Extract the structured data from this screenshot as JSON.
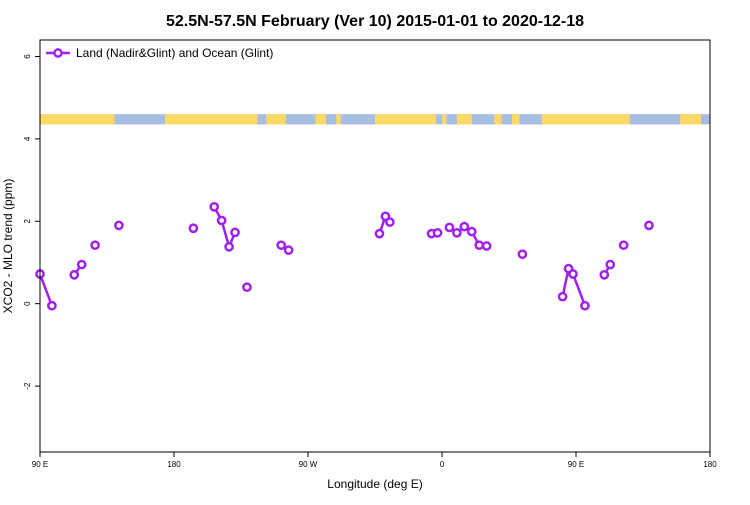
{
  "chart_data": {
    "type": "line",
    "title": "52.5N-57.5N February (Ver 10)   2015-01-01 to 2020-12-18",
    "xlabel": "Longitude (deg E)",
    "ylabel": "XCO2 - MLO trend (ppm)",
    "xlim": [
      90,
      540
    ],
    "ylim": [
      -3.6,
      6.4
    ],
    "x_tick_values": [
      90,
      180,
      270,
      360,
      450,
      540
    ],
    "x_tick_labels": [
      "90 E",
      "180",
      "90 W",
      "0",
      "90 E",
      "180"
    ],
    "y_tick_values": [
      -2,
      0,
      2,
      4,
      6
    ],
    "y_tick_labels": [
      "-2",
      "0",
      "2",
      "4",
      "6"
    ],
    "grid": false,
    "legend": {
      "position": "top-left",
      "entries": [
        "Land (Nadir&Glint) and Ocean (Glint)"
      ]
    },
    "series_color": "#a020f0",
    "land_color": "#ffd966",
    "ocean_color": "#a7bde2",
    "series": [
      {
        "name": "Land (Nadir&Glint) and Ocean (Glint)",
        "segments": [
          [
            [
              90,
              0.72
            ],
            [
              98,
              -0.05
            ]
          ],
          [
            [
              113,
              0.7
            ],
            [
              118,
              0.95
            ]
          ],
          [
            [
              127,
              1.42
            ]
          ],
          [
            [
              143,
              1.9
            ]
          ],
          [
            [
              193,
              1.83
            ]
          ],
          [
            [
              207,
              2.35
            ],
            [
              212,
              2.02
            ],
            [
              217,
              1.38
            ],
            [
              221,
              1.73
            ]
          ],
          [
            [
              229,
              0.4
            ]
          ],
          [
            [
              252,
              1.42
            ],
            [
              257,
              1.3
            ]
          ],
          [
            [
              318,
              1.7
            ],
            [
              322,
              2.12
            ],
            [
              325,
              1.98
            ]
          ],
          [
            [
              353,
              1.7
            ],
            [
              357,
              1.72
            ]
          ],
          [
            [
              365,
              1.85
            ],
            [
              370,
              1.72
            ],
            [
              375,
              1.87
            ],
            [
              380,
              1.75
            ],
            [
              385,
              1.42
            ],
            [
              390,
              1.4
            ]
          ],
          [
            [
              414,
              1.2
            ]
          ],
          [
            [
              441,
              0.17
            ],
            [
              445,
              0.85
            ],
            [
              448,
              0.72
            ],
            [
              456,
              -0.05
            ]
          ],
          [
            [
              469,
              0.7
            ],
            [
              473,
              0.95
            ]
          ],
          [
            [
              482,
              1.42
            ]
          ],
          [
            [
              499,
              1.9
            ]
          ]
        ]
      }
    ],
    "land_ocean_strip": {
      "y_range": [
        4.35,
        4.6
      ],
      "land_intervals": [
        [
          90,
          140
        ],
        [
          174,
          236
        ],
        [
          242,
          255
        ],
        [
          275,
          282
        ],
        [
          289,
          292
        ],
        [
          315,
          356
        ],
        [
          360,
          363
        ],
        [
          370,
          380
        ],
        [
          395,
          400
        ],
        [
          407,
          412
        ],
        [
          427,
          486
        ],
        [
          520,
          534
        ]
      ]
    }
  }
}
